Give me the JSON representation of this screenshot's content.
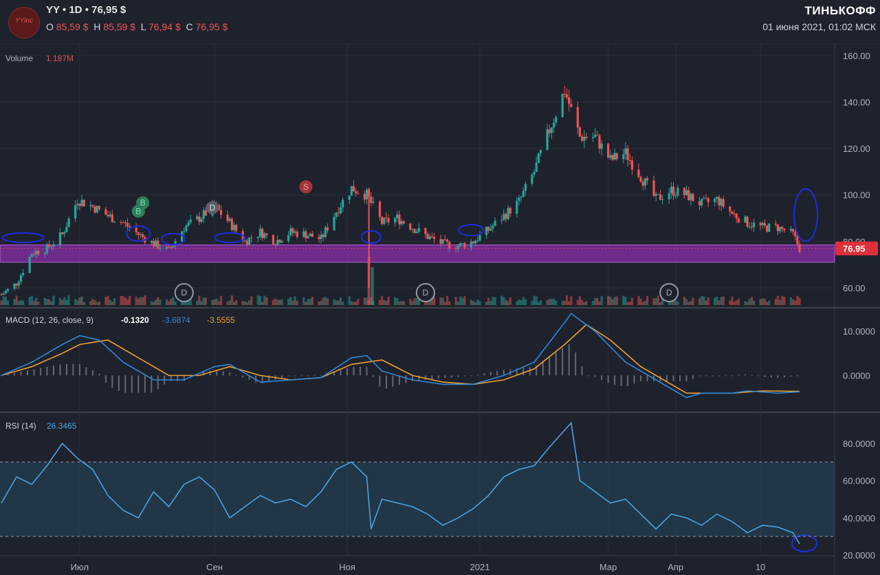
{
  "header": {
    "logo_text": "YYinc",
    "ticker": "YY",
    "timeframe": "1D",
    "price": "76,95 $",
    "ohlc": [
      {
        "label": "O",
        "value": "85,59 $"
      },
      {
        "label": "H",
        "value": "85,59 $"
      },
      {
        "label": "L",
        "value": "76,94 $"
      },
      {
        "label": "C",
        "value": "76,95 $"
      }
    ],
    "brand": "ТИНЬКОФФ",
    "datetime": "01 июня 2021, 01:02 МСК"
  },
  "colors": {
    "up": "#26a69a",
    "down": "#ef5350",
    "macd": "#2f8ad8",
    "signal": "#f0a030",
    "rsi": "#4ba3e0",
    "support_zone": "#8a2fa8",
    "annotation": "#1a2ee0"
  },
  "chart_data": [
    {
      "type": "candlestick",
      "title": "",
      "volume_label": "Volume",
      "volume_value": "1.187M",
      "last_price_label": "76.95",
      "y_ticks": [
        "60.00",
        "80.00",
        "100.00",
        "120.00",
        "140.00",
        "160.00"
      ],
      "ylim": [
        52,
        165
      ],
      "x_ticks": [
        "Июл",
        "Сен",
        "Ноя",
        "2021",
        "Мар",
        "Апр",
        "10"
      ],
      "support_zone": [
        71,
        78.5
      ],
      "event_markers": [
        {
          "label": "B",
          "date": "2020-07-28"
        },
        {
          "label": "B",
          "date": "2020-07-30"
        },
        {
          "label": "D",
          "date": "2020-08-31"
        },
        {
          "label": "S",
          "date": "2020-10-13"
        },
        {
          "label": "D",
          "date": "2020-08-18"
        },
        {
          "label": "D",
          "date": "2020-12-07"
        },
        {
          "label": "D",
          "date": "2021-03-29"
        }
      ],
      "close_path": [
        [
          "2020-05-26",
          57
        ],
        [
          "2020-06-02",
          62
        ],
        [
          "2020-06-09",
          75
        ],
        [
          "2020-06-16",
          77
        ],
        [
          "2020-06-23",
          83
        ],
        [
          "2020-06-30",
          98
        ],
        [
          "2020-07-07",
          95
        ],
        [
          "2020-07-14",
          91
        ],
        [
          "2020-07-21",
          88
        ],
        [
          "2020-07-28",
          83
        ],
        [
          "2020-08-04",
          79
        ],
        [
          "2020-08-11",
          76
        ],
        [
          "2020-08-18",
          86
        ],
        [
          "2020-08-25",
          90
        ],
        [
          "2020-09-01",
          95
        ],
        [
          "2020-09-08",
          88
        ],
        [
          "2020-09-15",
          80
        ],
        [
          "2020-09-22",
          84
        ],
        [
          "2020-09-29",
          80
        ],
        [
          "2020-10-06",
          84
        ],
        [
          "2020-10-13",
          83
        ],
        [
          "2020-10-20",
          81
        ],
        [
          "2020-10-27",
          93
        ],
        [
          "2020-11-03",
          103
        ],
        [
          "2020-11-10",
          100
        ],
        [
          "2020-11-17",
          88
        ],
        [
          "2020-11-24",
          90
        ],
        [
          "2020-12-01",
          86
        ],
        [
          "2020-12-08",
          82
        ],
        [
          "2020-12-15",
          79
        ],
        [
          "2020-12-22",
          78
        ],
        [
          "2020-12-29",
          80
        ],
        [
          "2021-01-05",
          85
        ],
        [
          "2021-01-12",
          91
        ],
        [
          "2021-01-19",
          97
        ],
        [
          "2021-01-26",
          110
        ],
        [
          "2021-02-02",
          128
        ],
        [
          "2021-02-09",
          145
        ],
        [
          "2021-02-16",
          125
        ],
        [
          "2021-02-23",
          125
        ],
        [
          "2021-03-02",
          115
        ],
        [
          "2021-03-09",
          118
        ],
        [
          "2021-03-16",
          108
        ],
        [
          "2021-03-23",
          98
        ],
        [
          "2021-03-30",
          102
        ],
        [
          "2021-04-06",
          100
        ],
        [
          "2021-04-13",
          96
        ],
        [
          "2021-04-20",
          98
        ],
        [
          "2021-04-27",
          92
        ],
        [
          "2021-05-04",
          88
        ],
        [
          "2021-05-11",
          86
        ],
        [
          "2021-05-18",
          86
        ],
        [
          "2021-05-25",
          83
        ],
        [
          "2021-05-28",
          77
        ]
      ]
    },
    {
      "type": "line",
      "title": "MACD (12, 26, close, 9)",
      "values": [
        "-0.1320",
        "-3.6874",
        "-3.5555"
      ],
      "y_ticks": [
        "0.0000",
        "10.0000"
      ],
      "ylim": [
        -8,
        15
      ],
      "series": [
        {
          "values": [
            [
              "2020-05-26",
              0
            ],
            [
              "2020-06-09",
              3
            ],
            [
              "2020-06-23",
              7
            ],
            [
              "2020-07-01",
              9
            ],
            [
              "2020-07-10",
              8
            ],
            [
              "2020-07-21",
              3
            ],
            [
              "2020-08-04",
              -1
            ],
            [
              "2020-08-18",
              -1
            ],
            [
              "2020-09-01",
              2
            ],
            [
              "2020-09-08",
              2.5
            ],
            [
              "2020-09-22",
              -1.5
            ],
            [
              "2020-10-06",
              -1
            ],
            [
              "2020-10-20",
              -0.5
            ],
            [
              "2020-11-03",
              4
            ],
            [
              "2020-11-10",
              4.5
            ],
            [
              "2020-11-17",
              1
            ],
            [
              "2020-12-01",
              -1
            ],
            [
              "2020-12-15",
              -2
            ],
            [
              "2020-12-29",
              -2
            ],
            [
              "2021-01-12",
              0
            ],
            [
              "2021-01-26",
              3
            ],
            [
              "2021-02-09",
              12
            ],
            [
              "2021-02-12",
              14
            ],
            [
              "2021-02-23",
              10
            ],
            [
              "2021-03-09",
              3
            ],
            [
              "2021-03-23",
              -1
            ],
            [
              "2021-04-06",
              -5
            ],
            [
              "2021-04-13",
              -4
            ],
            [
              "2021-04-27",
              -4
            ],
            [
              "2021-05-04",
              -3.5
            ],
            [
              "2021-05-18",
              -4
            ],
            [
              "2021-05-28",
              -3.7
            ]
          ]
        },
        {
          "values": [
            [
              "2020-05-26",
              0
            ],
            [
              "2020-06-09",
              2
            ],
            [
              "2020-06-23",
              5
            ],
            [
              "2020-07-01",
              7
            ],
            [
              "2020-07-14",
              8
            ],
            [
              "2020-07-28",
              4
            ],
            [
              "2020-08-11",
              0
            ],
            [
              "2020-08-25",
              0
            ],
            [
              "2020-09-08",
              2
            ],
            [
              "2020-09-22",
              0
            ],
            [
              "2020-10-06",
              -1
            ],
            [
              "2020-10-20",
              -0.5
            ],
            [
              "2020-11-03",
              2.5
            ],
            [
              "2020-11-17",
              3.5
            ],
            [
              "2020-12-01",
              0
            ],
            [
              "2020-12-15",
              -1.5
            ],
            [
              "2020-12-29",
              -2
            ],
            [
              "2021-01-12",
              -1
            ],
            [
              "2021-01-26",
              1.5
            ],
            [
              "2021-02-09",
              7
            ],
            [
              "2021-02-19",
              11.5
            ],
            [
              "2021-03-02",
              8
            ],
            [
              "2021-03-16",
              2
            ],
            [
              "2021-04-06",
              -4
            ],
            [
              "2021-04-27",
              -4
            ],
            [
              "2021-05-11",
              -3.5
            ],
            [
              "2021-05-28",
              -3.6
            ]
          ]
        }
      ]
    },
    {
      "type": "line",
      "title": "RSI (14)",
      "value": "26.3465",
      "y_ticks": [
        "20.0000",
        "40.0000",
        "60.0000",
        "80.0000"
      ],
      "ylim": [
        20,
        96
      ],
      "band": [
        30,
        70
      ],
      "series": [
        {
          "values": [
            [
              "2020-05-26",
              48
            ],
            [
              "2020-06-02",
              62
            ],
            [
              "2020-06-09",
              58
            ],
            [
              "2020-06-16",
              68
            ],
            [
              "2020-06-23",
              80
            ],
            [
              "2020-06-30",
              72
            ],
            [
              "2020-07-07",
              66
            ],
            [
              "2020-07-14",
              52
            ],
            [
              "2020-07-21",
              44
            ],
            [
              "2020-07-28",
              40
            ],
            [
              "2020-08-04",
              54
            ],
            [
              "2020-08-11",
              46
            ],
            [
              "2020-08-18",
              58
            ],
            [
              "2020-08-25",
              62
            ],
            [
              "2020-09-01",
              55
            ],
            [
              "2020-09-08",
              40
            ],
            [
              "2020-09-15",
              46
            ],
            [
              "2020-09-22",
              52
            ],
            [
              "2020-09-29",
              48
            ],
            [
              "2020-10-06",
              50
            ],
            [
              "2020-10-13",
              46
            ],
            [
              "2020-10-20",
              54
            ],
            [
              "2020-10-27",
              66
            ],
            [
              "2020-11-03",
              70
            ],
            [
              "2020-11-10",
              62
            ],
            [
              "2020-11-12",
              34
            ],
            [
              "2020-11-17",
              50
            ],
            [
              "2020-11-24",
              48
            ],
            [
              "2020-12-01",
              46
            ],
            [
              "2020-12-08",
              42
            ],
            [
              "2020-12-15",
              36
            ],
            [
              "2020-12-22",
              40
            ],
            [
              "2020-12-29",
              45
            ],
            [
              "2021-01-05",
              52
            ],
            [
              "2021-01-12",
              62
            ],
            [
              "2021-01-19",
              66
            ],
            [
              "2021-01-26",
              68
            ],
            [
              "2021-02-02",
              78
            ],
            [
              "2021-02-12",
              91
            ],
            [
              "2021-02-16",
              60
            ],
            [
              "2021-02-23",
              54
            ],
            [
              "2021-03-02",
              48
            ],
            [
              "2021-03-09",
              50
            ],
            [
              "2021-03-16",
              42
            ],
            [
              "2021-03-23",
              34
            ],
            [
              "2021-03-30",
              42
            ],
            [
              "2021-04-06",
              40
            ],
            [
              "2021-04-13",
              36
            ],
            [
              "2021-04-20",
              42
            ],
            [
              "2021-04-27",
              38
            ],
            [
              "2021-05-04",
              32
            ],
            [
              "2021-05-11",
              36
            ],
            [
              "2021-05-18",
              35
            ],
            [
              "2021-05-25",
              32
            ],
            [
              "2021-05-28",
              26
            ]
          ]
        }
      ]
    }
  ]
}
